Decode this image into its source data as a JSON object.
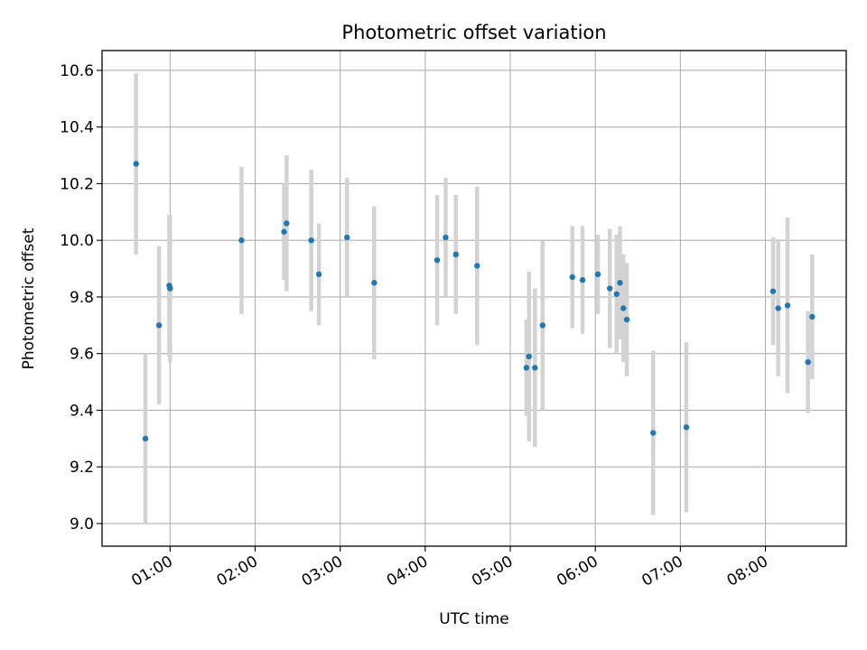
{
  "chart_data": {
    "type": "scatter",
    "title": "Photometric offset variation",
    "xlabel": "UTC time",
    "ylabel": "Photometric offset",
    "xlim_hours": [
      0.2,
      8.95
    ],
    "ylim": [
      8.92,
      10.67
    ],
    "x_tick_hours": [
      1,
      2,
      3,
      4,
      5,
      6,
      7,
      8
    ],
    "x_tick_labels": [
      "01:00",
      "02:00",
      "03:00",
      "04:00",
      "05:00",
      "06:00",
      "07:00",
      "08:00"
    ],
    "y_ticks": [
      9.0,
      9.2,
      9.4,
      9.6,
      9.8,
      10.0,
      10.2,
      10.4,
      10.6
    ],
    "y_tick_labels": [
      "9.0",
      "9.2",
      "9.4",
      "9.6",
      "9.8",
      "10.0",
      "10.2",
      "10.4",
      "10.6"
    ],
    "grid": true,
    "x_unit": "hours UTC",
    "point_color": "#1f77b4",
    "errorbar_color": "#d3d3d3",
    "points": [
      {
        "x": 0.6,
        "y": 10.27,
        "err": 0.32
      },
      {
        "x": 0.71,
        "y": 9.3,
        "err": 0.3
      },
      {
        "x": 0.87,
        "y": 9.7,
        "err": 0.28
      },
      {
        "x": 0.99,
        "y": 9.84,
        "err": 0.25
      },
      {
        "x": 1.0,
        "y": 9.83,
        "err": 0.26
      },
      {
        "x": 1.84,
        "y": 10.0,
        "err": 0.26
      },
      {
        "x": 2.34,
        "y": 10.03,
        "err": 0.17
      },
      {
        "x": 2.37,
        "y": 10.06,
        "err": 0.24
      },
      {
        "x": 2.66,
        "y": 10.0,
        "err": 0.25
      },
      {
        "x": 2.75,
        "y": 9.88,
        "err": 0.18
      },
      {
        "x": 3.08,
        "y": 10.01,
        "err": 0.21
      },
      {
        "x": 3.4,
        "y": 9.85,
        "err": 0.27
      },
      {
        "x": 4.14,
        "y": 9.93,
        "err": 0.23
      },
      {
        "x": 4.24,
        "y": 10.01,
        "err": 0.21
      },
      {
        "x": 4.36,
        "y": 9.95,
        "err": 0.21
      },
      {
        "x": 4.61,
        "y": 9.91,
        "err": 0.28
      },
      {
        "x": 5.19,
        "y": 9.55,
        "err": 0.17
      },
      {
        "x": 5.22,
        "y": 9.59,
        "err": 0.3
      },
      {
        "x": 5.29,
        "y": 9.55,
        "err": 0.28
      },
      {
        "x": 5.38,
        "y": 9.7,
        "err": 0.3
      },
      {
        "x": 5.73,
        "y": 9.87,
        "err": 0.18
      },
      {
        "x": 5.85,
        "y": 9.86,
        "err": 0.19
      },
      {
        "x": 6.03,
        "y": 9.88,
        "err": 0.14
      },
      {
        "x": 6.17,
        "y": 9.83,
        "err": 0.21
      },
      {
        "x": 6.25,
        "y": 9.81,
        "err": 0.21
      },
      {
        "x": 6.29,
        "y": 9.85,
        "err": 0.2
      },
      {
        "x": 6.33,
        "y": 9.76,
        "err": 0.19
      },
      {
        "x": 6.37,
        "y": 9.72,
        "err": 0.2
      },
      {
        "x": 6.68,
        "y": 9.32,
        "err": 0.29
      },
      {
        "x": 7.07,
        "y": 9.34,
        "err": 0.3
      },
      {
        "x": 8.09,
        "y": 9.82,
        "err": 0.19
      },
      {
        "x": 8.15,
        "y": 9.76,
        "err": 0.24
      },
      {
        "x": 8.26,
        "y": 9.77,
        "err": 0.31
      },
      {
        "x": 8.5,
        "y": 9.57,
        "err": 0.18
      },
      {
        "x": 8.55,
        "y": 9.73,
        "err": 0.22
      }
    ]
  }
}
